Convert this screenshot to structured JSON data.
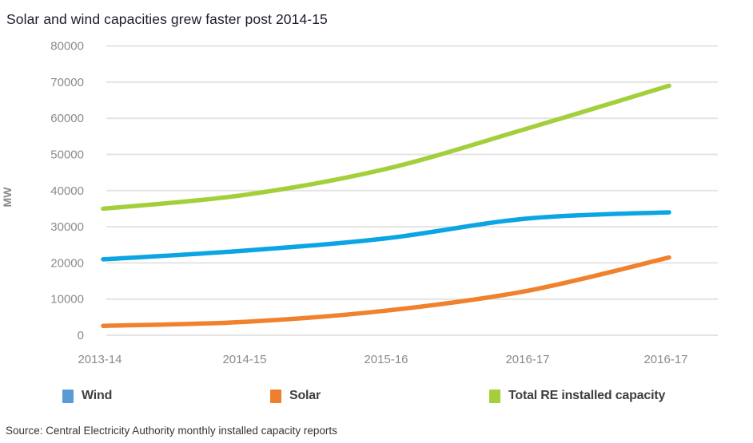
{
  "title": "Solar and wind capacities grew faster post 2014-15",
  "source": "Source: Central Electricity Authority monthly installed capacity reports",
  "chart_data": {
    "type": "line",
    "categories": [
      "2013-14",
      "2014-15",
      "2015-16",
      "2016-17",
      "2016-17"
    ],
    "series": [
      {
        "name": "Wind",
        "line_color": "#0ca5e4",
        "legend_color": "#5b9bd5",
        "values": [
          21000,
          23400,
          26800,
          32300,
          34000
        ]
      },
      {
        "name": "Solar",
        "line_color": "#f0812d",
        "legend_color": "#ef7e31",
        "values": [
          2600,
          3700,
          6800,
          12300,
          21500
        ]
      },
      {
        "name": "Total RE installed capacity",
        "line_color": "#a3cf3b",
        "legend_color": "#a4ce3c",
        "values": [
          35000,
          38800,
          46000,
          57200,
          69000
        ]
      }
    ],
    "xlabel": "",
    "ylabel": "MW",
    "ylim": [
      0,
      80000
    ],
    "ytick_step": 10000,
    "ytick_labels": [
      "0",
      "10000",
      "20000",
      "30000",
      "40000",
      "50000",
      "60000",
      "70000",
      "80000"
    ],
    "grid": true,
    "legend_position": "bottom"
  },
  "style": {
    "gridline_color": "#e4e4e4",
    "axis_text_color": "#8b8b8e",
    "title_color": "#1b1b2e",
    "legend_text_color": "#3f3f41",
    "background": "#ffffff"
  }
}
